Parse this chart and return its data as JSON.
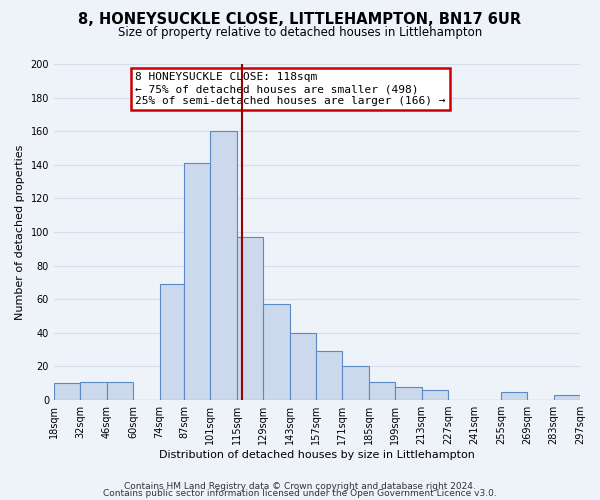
{
  "title": "8, HONEYSUCKLE CLOSE, LITTLEHAMPTON, BN17 6UR",
  "subtitle": "Size of property relative to detached houses in Littlehampton",
  "xlabel": "Distribution of detached houses by size in Littlehampton",
  "ylabel": "Number of detached properties",
  "bar_lefts": [
    18,
    32,
    46,
    60,
    74,
    87,
    101,
    115,
    129,
    143,
    157,
    171,
    185,
    199,
    213,
    227,
    241,
    255,
    269,
    283
  ],
  "bar_rights": [
    32,
    46,
    60,
    74,
    87,
    101,
    115,
    129,
    143,
    157,
    171,
    185,
    199,
    213,
    227,
    241,
    255,
    269,
    283,
    297
  ],
  "bar_heights": [
    10,
    11,
    11,
    0,
    69,
    141,
    160,
    97,
    57,
    40,
    29,
    20,
    11,
    8,
    6,
    0,
    0,
    5,
    0,
    3
  ],
  "bar_color": "#ccd8ec",
  "bar_edgecolor": "#5a8ac6",
  "property_line_x": 118,
  "property_line_color": "#990000",
  "annotation_title": "8 HONEYSUCKLE CLOSE: 118sqm",
  "annotation_line1": "← 75% of detached houses are smaller (498)",
  "annotation_line2": "25% of semi-detached houses are larger (166) →",
  "annotation_box_edgecolor": "#cc0000",
  "annotation_box_facecolor": "white",
  "ylim": [
    0,
    200
  ],
  "yticks": [
    0,
    20,
    40,
    60,
    80,
    100,
    120,
    140,
    160,
    180,
    200
  ],
  "xtick_labels": [
    "18sqm",
    "32sqm",
    "46sqm",
    "60sqm",
    "74sqm",
    "87sqm",
    "101sqm",
    "115sqm",
    "129sqm",
    "143sqm",
    "157sqm",
    "171sqm",
    "185sqm",
    "199sqm",
    "213sqm",
    "227sqm",
    "241sqm",
    "255sqm",
    "269sqm",
    "283sqm",
    "297sqm"
  ],
  "footer1": "Contains HM Land Registry data © Crown copyright and database right 2024.",
  "footer2": "Contains public sector information licensed under the Open Government Licence v3.0.",
  "bg_color": "#eef2f9",
  "grid_color": "#d8dce8",
  "title_fontsize": 10.5,
  "subtitle_fontsize": 8.5,
  "axis_label_fontsize": 8,
  "tick_fontsize": 7,
  "footer_fontsize": 6.5,
  "annot_fontsize": 8,
  "xlim_left": 18,
  "xlim_right": 297
}
